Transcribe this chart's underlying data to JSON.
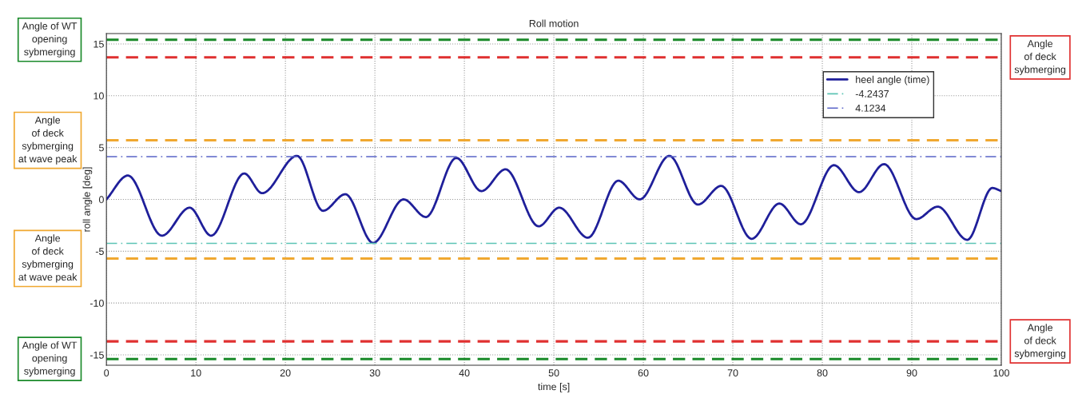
{
  "chart_data": {
    "type": "line",
    "title": "Roll motion",
    "xlabel": "time [s]",
    "ylabel": "roll angle [deg]",
    "xlim": [
      0,
      100
    ],
    "xticks": [
      0,
      10,
      20,
      30,
      40,
      50,
      60,
      70,
      80,
      90,
      100
    ],
    "ylim": [
      -16,
      16
    ],
    "yticks": [
      -15,
      -10,
      -5,
      0,
      5,
      10,
      15
    ],
    "grid": true,
    "legend": "top right",
    "series": [
      {
        "name": "heel angle (time)",
        "color": "#1f1f9a",
        "line_style": "solid",
        "x": [
          0,
          2.4,
          6.2,
          9.3,
          11.7,
          15.4,
          17.4,
          21.3,
          24.2,
          26.7,
          29.8,
          33.2,
          35.7,
          39.1,
          41.9,
          44.6,
          48.3,
          50.6,
          53.8,
          57.2,
          59.6,
          62.9,
          66.1,
          68.7,
          72.1,
          75.2,
          77.6,
          81.3,
          84.1,
          86.9,
          90.5,
          92.9,
          96.2,
          99.0,
          100
        ],
        "values": [
          0,
          2.3,
          -3.5,
          -0.8,
          -3.5,
          2.5,
          0.6,
          4.2,
          -1.1,
          0.5,
          -4.2,
          0.0,
          -1.7,
          4.0,
          0.8,
          2.9,
          -2.6,
          -0.8,
          -3.7,
          1.8,
          0.0,
          4.2,
          -0.5,
          1.3,
          -3.8,
          -0.4,
          -2.4,
          3.3,
          0.7,
          3.4,
          -1.9,
          -0.7,
          -3.9,
          1.1,
          0.8
        ]
      },
      {
        "name": "-4.2437",
        "color": "#5cc4b4",
        "line_style": "dashdot",
        "x": [
          0,
          100
        ],
        "values": [
          -4.2437,
          -4.2437
        ]
      },
      {
        "name": "4.1234",
        "color": "#5a64c8",
        "line_style": "dashdot",
        "x": [
          0,
          100
        ],
        "values": [
          4.1234,
          4.1234
        ]
      }
    ],
    "ref_lines": [
      {
        "axis": "y",
        "value": 15.4,
        "label": "Angle of WT\nopening\nsybmerging",
        "color": "#1a8a2a",
        "line_style": "dashed"
      },
      {
        "axis": "y",
        "value": 13.7,
        "label": "Angle\nof deck\nsybmerging",
        "color": "#e03030",
        "line_style": "dashed"
      },
      {
        "axis": "y",
        "value": 5.7,
        "label": "Angle\nof deck\nsybmerging\nat wave peak",
        "color": "#f0a830",
        "line_style": "dashed"
      },
      {
        "axis": "y",
        "value": -5.7,
        "label": "Angle\nof deck\nsybmerging\nat wave peak",
        "color": "#f0a830",
        "line_style": "dashed"
      },
      {
        "axis": "y",
        "value": -13.7,
        "label": "Angle\nof deck\nsybmerging",
        "color": "#e03030",
        "line_style": "dashed"
      },
      {
        "axis": "y",
        "value": -15.4,
        "label": "Angle of WT\nopening\nsybmerging",
        "color": "#1a8a2a",
        "line_style": "dashed"
      }
    ]
  }
}
